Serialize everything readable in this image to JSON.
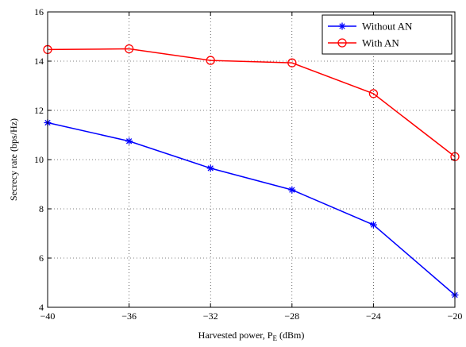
{
  "chart_data": {
    "type": "line",
    "title": "",
    "xlabel": "Harvested power, P",
    "xlabel_sub": "E",
    "xlabel_unit": " (dBm)",
    "ylabel": "Secrecy rate (bps/Hz)",
    "x": [
      -40,
      -36,
      -32,
      -28,
      -24,
      -20
    ],
    "xlim": [
      -40,
      -20
    ],
    "ylim": [
      4,
      16
    ],
    "xticks": [
      -40,
      -36,
      -32,
      -28,
      -24,
      -20
    ],
    "xtick_labels": [
      "−40",
      "−36",
      "−32",
      "−28",
      "−24",
      "−20"
    ],
    "yticks": [
      4,
      6,
      8,
      10,
      12,
      14,
      16
    ],
    "ytick_labels": [
      "4",
      "6",
      "8",
      "10",
      "12",
      "14",
      "16"
    ],
    "grid": true,
    "legend_position": "top-right",
    "series": [
      {
        "name": "Without AN",
        "color": "#0000ff",
        "marker": "asterisk",
        "values": [
          11.5,
          10.75,
          9.65,
          8.77,
          7.35,
          4.5
        ]
      },
      {
        "name": "With AN",
        "color": "#ff0000",
        "marker": "circle",
        "values": [
          14.47,
          14.5,
          14.03,
          13.93,
          12.68,
          10.12
        ]
      }
    ]
  }
}
